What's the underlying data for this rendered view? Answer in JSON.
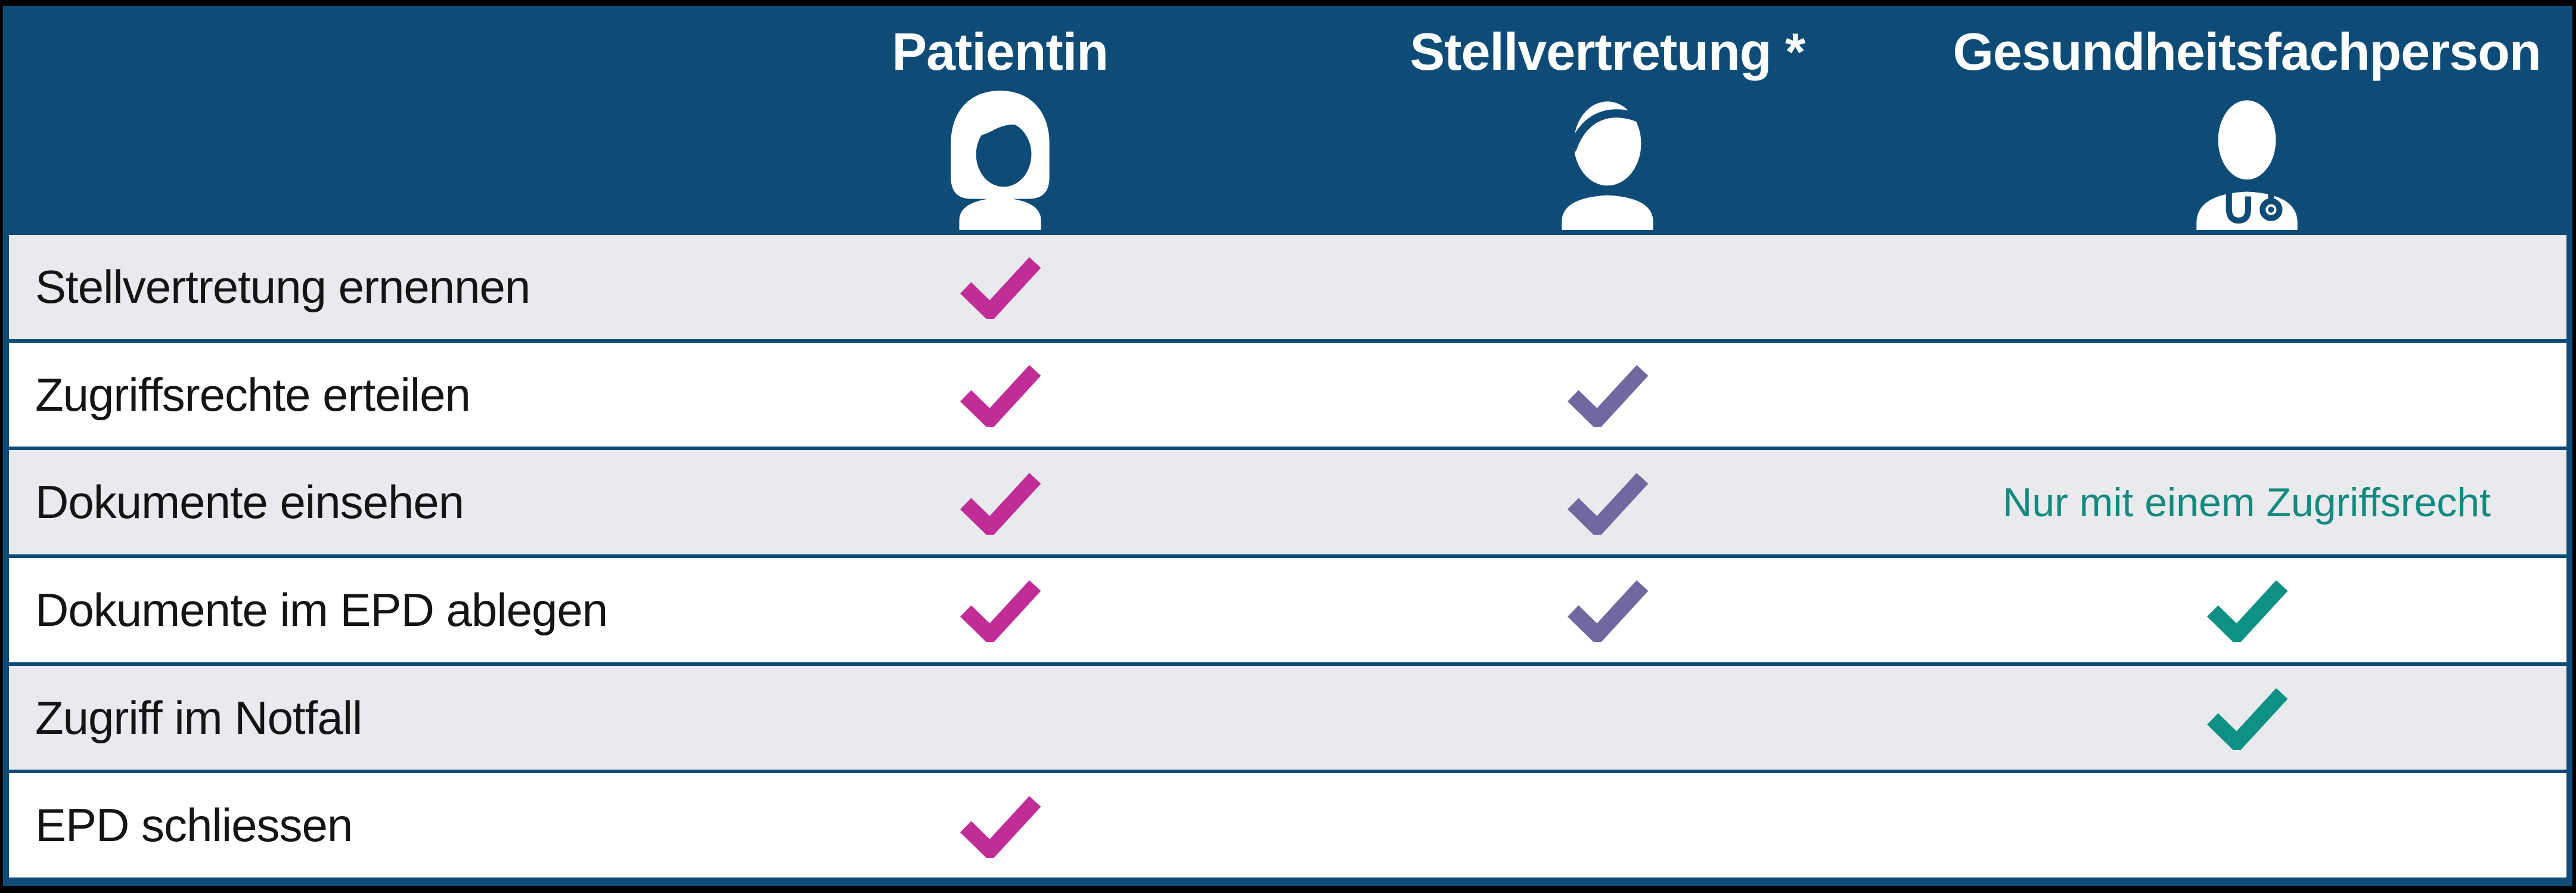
{
  "table": {
    "header": {
      "columns": [
        {
          "label": "Patientin",
          "icon": "patientin-icon"
        },
        {
          "label": "Stellvertretung *",
          "icon": "stellvertretung-icon"
        },
        {
          "label": "Gesundheitsfachperson",
          "icon": "gesundheitsfachperson-icon"
        }
      ]
    },
    "rows": [
      {
        "label": "Stellvertretung ernennen",
        "cells": [
          "check",
          "",
          ""
        ]
      },
      {
        "label": "Zugriffsrechte erteilen",
        "cells": [
          "check",
          "check",
          ""
        ]
      },
      {
        "label": "Dokumente einsehen",
        "cells": [
          "check",
          "check",
          "note"
        ],
        "note": "Nur mit einem Zugriffsrecht"
      },
      {
        "label": "Dokumente im EPD ablegen",
        "cells": [
          "check",
          "check",
          "check"
        ]
      },
      {
        "label": "Zugriff im Notfall",
        "cells": [
          "",
          "",
          "check"
        ]
      },
      {
        "label": "EPD schliessen",
        "cells": [
          "check",
          "",
          ""
        ]
      }
    ],
    "colors": {
      "header_bg": "#0e4c77",
      "grid_line": "#0e4c77",
      "row_bg": "#ffffff",
      "row_alt_bg": "#e8eaed",
      "label_text": "#141414",
      "note_text": "#13897f",
      "check_colors": [
        "#c12d97",
        "#72679e",
        "#0e9184"
      ]
    }
  },
  "chart_data": {
    "type": "table",
    "columns": [
      "",
      "Patientin",
      "Stellvertretung *",
      "Gesundheitsfachperson"
    ],
    "rows": [
      [
        "Stellvertretung ernennen",
        "check",
        "",
        ""
      ],
      [
        "Zugriffsrechte erteilen",
        "check",
        "check",
        ""
      ],
      [
        "Dokumente einsehen",
        "check",
        "check",
        "Nur mit einem Zugriffsrecht"
      ],
      [
        "Dokumente im EPD ablegen",
        "check",
        "check",
        "check"
      ],
      [
        "Zugriff im Notfall",
        "",
        "",
        "check"
      ],
      [
        "EPD schliessen",
        "check",
        "",
        ""
      ]
    ],
    "check_colors_by_column": {
      "Patientin": "#c12d97",
      "Stellvertretung *": "#72679e",
      "Gesundheitsfachperson": "#0e9184"
    },
    "layout": "permissions matrix, alternating row shading, navy header with role icons"
  }
}
